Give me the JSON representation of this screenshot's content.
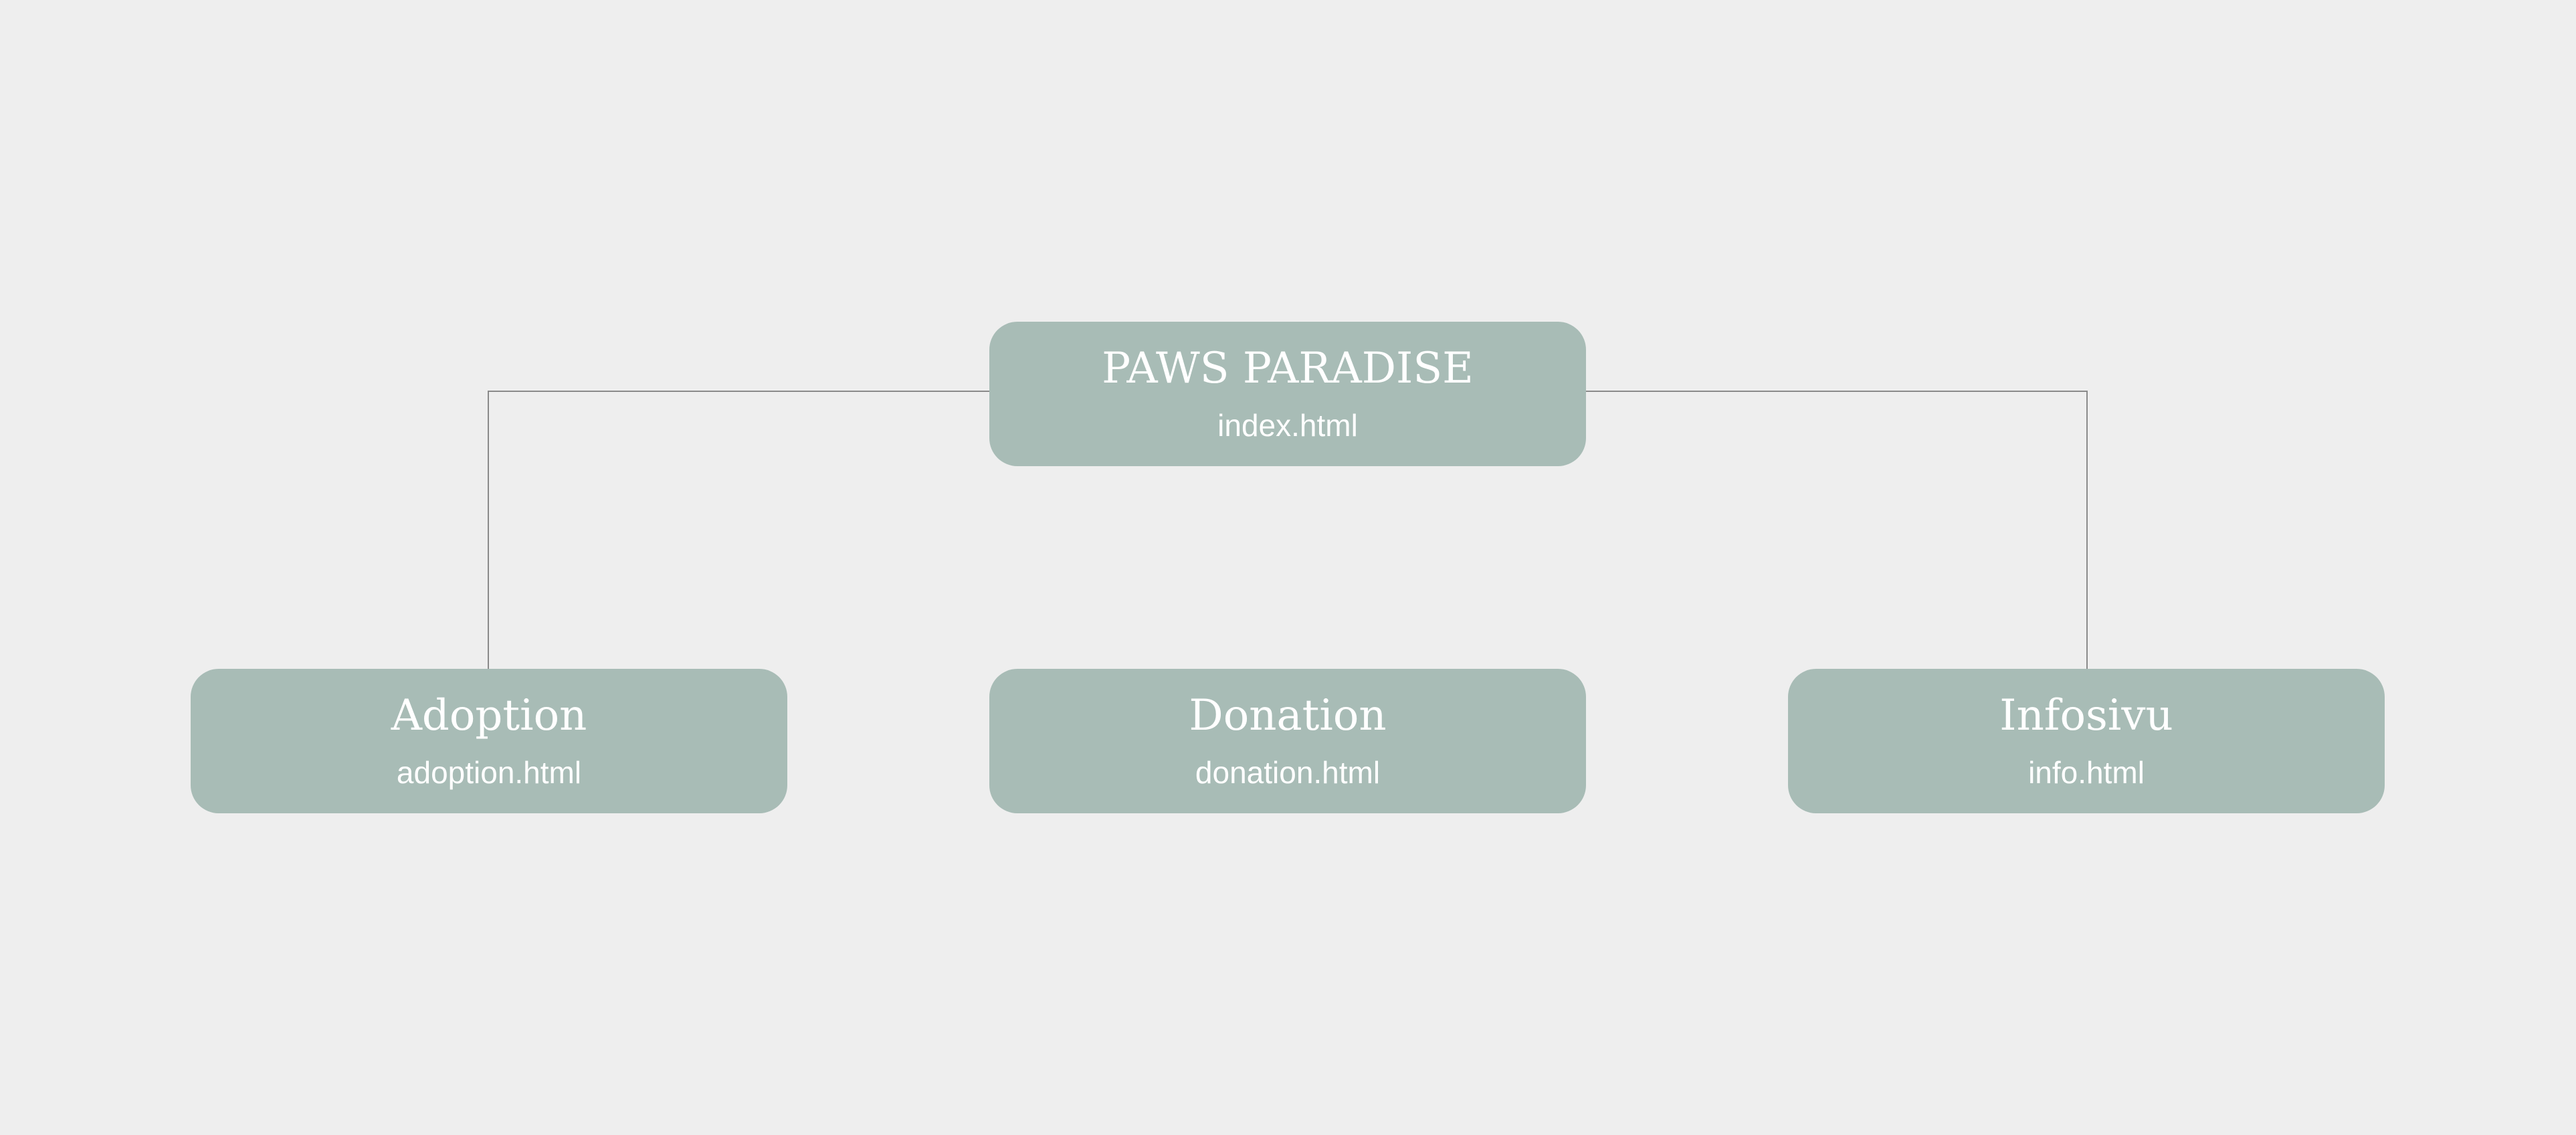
{
  "colors": {
    "background": "#eeeeee",
    "node_fill": "#a8bcb6",
    "node_text": "#ffffff",
    "connector": "#8a8a8a"
  },
  "sitemap": {
    "root": {
      "title": "PAWS PARADISE",
      "file": "index.html"
    },
    "pages": [
      {
        "title": "Adoption",
        "file": "adoption.html"
      },
      {
        "title": "Donation",
        "file": "donation.html"
      },
      {
        "title": "Infosivu",
        "file": "info.html"
      }
    ]
  }
}
